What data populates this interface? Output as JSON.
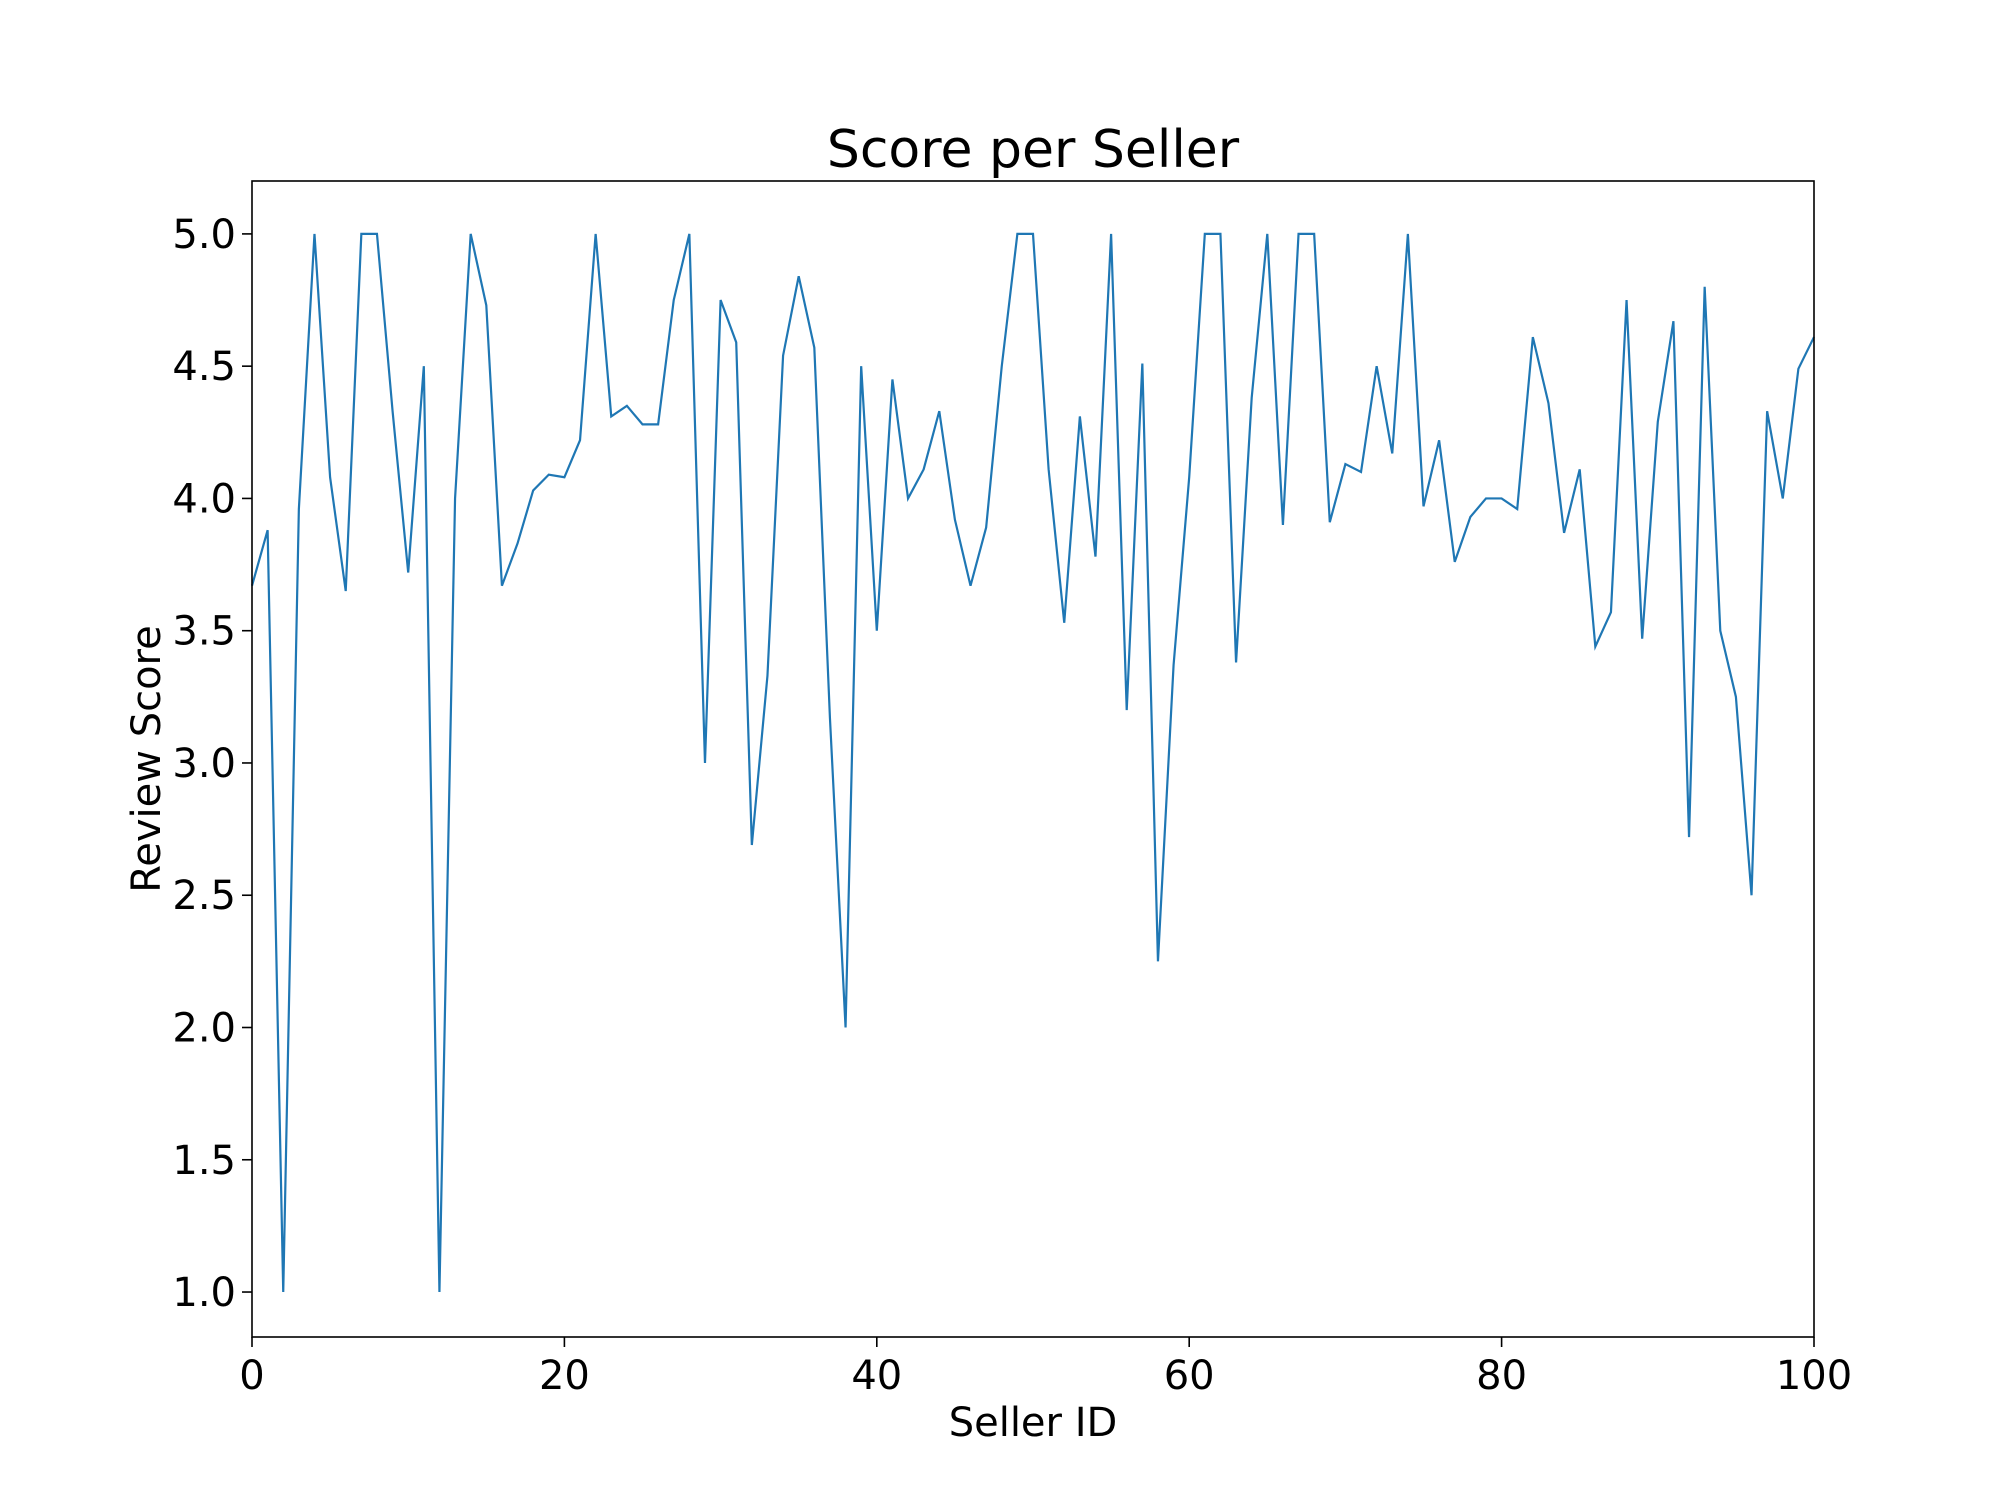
{
  "chart_data": {
    "type": "line",
    "title": "Score per Seller",
    "xlabel": "Seller ID",
    "ylabel": "Review Score",
    "xlim": [
      0,
      100
    ],
    "ylim": [
      0.83,
      5.2
    ],
    "xticks": [
      0,
      20,
      40,
      60,
      80,
      100
    ],
    "xtick_labels": [
      "0",
      "20",
      "40",
      "60",
      "80",
      "100"
    ],
    "yticks": [
      1.0,
      1.5,
      2.0,
      2.5,
      3.0,
      3.5,
      4.0,
      4.5,
      5.0
    ],
    "ytick_labels": [
      "1.0",
      "1.5",
      "2.0",
      "2.5",
      "3.0",
      "3.5",
      "4.0",
      "4.5",
      "5.0"
    ],
    "grid": false,
    "line_color": "#1f77b4",
    "series": [
      {
        "x": [
          0,
          1,
          2,
          3,
          4,
          5,
          6,
          7,
          8,
          9,
          10,
          11,
          12,
          13,
          14,
          15,
          16,
          17,
          18,
          19,
          20,
          21,
          22,
          23,
          24,
          25,
          26,
          27,
          28,
          29,
          30,
          31,
          32,
          33,
          34,
          35,
          36,
          37,
          38,
          39,
          40,
          41,
          42,
          43,
          44,
          45,
          46,
          47,
          48,
          49,
          50,
          51,
          52,
          53,
          54,
          55,
          56,
          57,
          58,
          59,
          60,
          61,
          62,
          63,
          64,
          65,
          66,
          67,
          68,
          69,
          70,
          71,
          72,
          73,
          74,
          75,
          76,
          77,
          78,
          79,
          80,
          81,
          82,
          83,
          84,
          85,
          86,
          87,
          88,
          89,
          90,
          91,
          92,
          93,
          94,
          95,
          96,
          97,
          98,
          99,
          100
        ],
        "values": [
          3.67,
          3.88,
          1.0,
          3.96,
          5.0,
          4.08,
          3.65,
          5.0,
          5.0,
          4.33,
          3.72,
          4.5,
          1.0,
          4.0,
          5.0,
          4.73,
          3.67,
          3.83,
          4.03,
          4.09,
          4.08,
          4.22,
          5.0,
          4.31,
          4.35,
          4.28,
          4.28,
          4.75,
          5.0,
          3.0,
          4.75,
          4.59,
          2.69,
          3.33,
          4.54,
          4.84,
          4.57,
          3.17,
          2.0,
          4.5,
          3.5,
          4.45,
          4.0,
          4.11,
          4.33,
          3.92,
          3.67,
          3.89,
          4.5,
          5.0,
          5.0,
          4.11,
          3.53,
          4.31,
          3.78,
          5.0,
          3.2,
          4.51,
          2.25,
          3.37,
          4.08,
          5.0,
          5.0,
          3.38,
          4.38,
          5.0,
          3.9,
          5.0,
          5.0,
          3.91,
          4.13,
          4.1,
          4.5,
          4.17,
          5.0,
          3.97,
          4.22,
          3.76,
          3.93,
          4.0,
          4.0,
          3.96,
          4.61,
          4.36,
          3.87,
          4.11,
          3.44,
          3.57,
          4.75,
          3.47,
          4.29,
          4.67,
          2.72,
          4.8,
          3.5,
          3.25,
          2.5,
          4.33,
          4.0,
          4.49,
          4.61
        ]
      }
    ]
  }
}
